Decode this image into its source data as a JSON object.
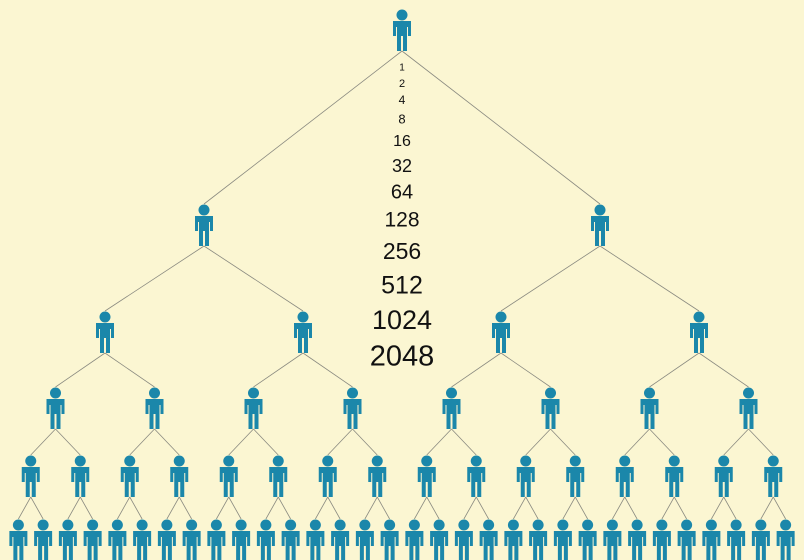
{
  "numbers": [
    1,
    2,
    4,
    8,
    16,
    32,
    64,
    128,
    256,
    512,
    1024,
    2048
  ]
}
